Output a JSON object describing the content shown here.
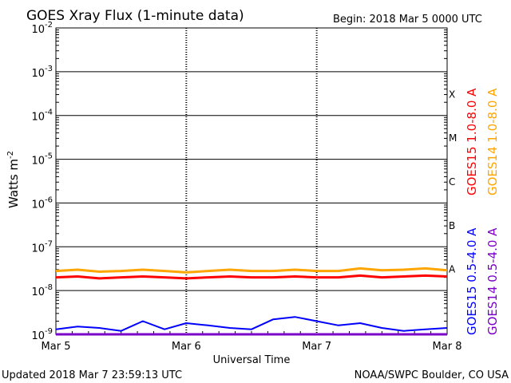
{
  "header": {
    "title": "GOES Xray Flux (1-minute data)",
    "begin": "Begin:  2018 Mar 5 0000 UTC"
  },
  "footer": {
    "updated": "Updated 2018 Mar  7 23:59:13 UTC",
    "credit": "NOAA/SWPC Boulder, CO USA"
  },
  "colors": {
    "goes15_long": "#ff0000",
    "goes14_long": "#ffa500",
    "goes15_short": "#0000ff",
    "goes14_short": "#7b00c8",
    "gridline": "#000000",
    "background": "#ffffff"
  },
  "chart_data": {
    "type": "line",
    "title": "GOES Xray Flux (1-minute data)",
    "xlabel": "Universal Time",
    "ylabel": "Watts m",
    "ylabel_superscript": "-2",
    "yscale": "log",
    "ylim": [
      1e-09,
      0.01
    ],
    "xlim": [
      "2018-03-05",
      "2018-03-08"
    ],
    "x_ticks": [
      "Mar 5",
      "Mar 6",
      "Mar 7",
      "Mar 8"
    ],
    "y_ticks": [
      {
        "base": "10",
        "exp": "-9"
      },
      {
        "base": "10",
        "exp": "-8"
      },
      {
        "base": "10",
        "exp": "-7"
      },
      {
        "base": "10",
        "exp": "-6"
      },
      {
        "base": "10",
        "exp": "-5"
      },
      {
        "base": "10",
        "exp": "-4"
      },
      {
        "base": "10",
        "exp": "-3"
      },
      {
        "base": "10",
        "exp": "-2"
      }
    ],
    "flare_classes": [
      {
        "label": "A",
        "value": 1e-08
      },
      {
        "label": "B",
        "value": 1e-07
      },
      {
        "label": "C",
        "value": 1e-06
      },
      {
        "label": "M",
        "value": 1e-05
      },
      {
        "label": "X",
        "value": 0.0001
      }
    ],
    "grid": true,
    "legend_position": "right",
    "series": [
      {
        "name": "GOES15 1.0-8.0 A",
        "color": "#ff0000",
        "x": [
          "2018-03-05 00:00",
          "2018-03-05 04:00",
          "2018-03-05 08:00",
          "2018-03-05 12:00",
          "2018-03-05 16:00",
          "2018-03-05 20:00",
          "2018-03-06 00:00",
          "2018-03-06 04:00",
          "2018-03-06 08:00",
          "2018-03-06 12:00",
          "2018-03-06 16:00",
          "2018-03-06 20:00",
          "2018-03-07 00:00",
          "2018-03-07 04:00",
          "2018-03-07 08:00",
          "2018-03-07 12:00",
          "2018-03-07 16:00",
          "2018-03-07 20:00",
          "2018-03-08 00:00"
        ],
        "values": [
          2e-08,
          2.1e-08,
          1.9e-08,
          2e-08,
          2.1e-08,
          2e-08,
          1.9e-08,
          2e-08,
          2.1e-08,
          2e-08,
          2e-08,
          2.1e-08,
          2e-08,
          2e-08,
          2.2e-08,
          2e-08,
          2.1e-08,
          2.2e-08,
          2.1e-08
        ]
      },
      {
        "name": "GOES14 1.0-8.0 A",
        "color": "#ffa500",
        "x": [
          "2018-03-05 00:00",
          "2018-03-05 04:00",
          "2018-03-05 08:00",
          "2018-03-05 12:00",
          "2018-03-05 16:00",
          "2018-03-05 20:00",
          "2018-03-06 00:00",
          "2018-03-06 04:00",
          "2018-03-06 08:00",
          "2018-03-06 12:00",
          "2018-03-06 16:00",
          "2018-03-06 20:00",
          "2018-03-07 00:00",
          "2018-03-07 04:00",
          "2018-03-07 08:00",
          "2018-03-07 12:00",
          "2018-03-07 16:00",
          "2018-03-07 20:00",
          "2018-03-08 00:00"
        ],
        "values": [
          2.8e-08,
          3e-08,
          2.7e-08,
          2.8e-08,
          3e-08,
          2.8e-08,
          2.6e-08,
          2.8e-08,
          3e-08,
          2.8e-08,
          2.8e-08,
          3e-08,
          2.8e-08,
          2.8e-08,
          3.2e-08,
          2.9e-08,
          3e-08,
          3.2e-08,
          2.9e-08
        ]
      },
      {
        "name": "GOES15 0.5-4.0 A",
        "color": "#0000ff",
        "x": [
          "2018-03-05 00:00",
          "2018-03-05 04:00",
          "2018-03-05 08:00",
          "2018-03-05 12:00",
          "2018-03-05 16:00",
          "2018-03-05 20:00",
          "2018-03-06 00:00",
          "2018-03-06 04:00",
          "2018-03-06 08:00",
          "2018-03-06 12:00",
          "2018-03-06 16:00",
          "2018-03-06 20:00",
          "2018-03-07 00:00",
          "2018-03-07 04:00",
          "2018-03-07 08:00",
          "2018-03-07 12:00",
          "2018-03-07 16:00",
          "2018-03-07 20:00",
          "2018-03-08 00:00"
        ],
        "values": [
          1.3e-09,
          1.5e-09,
          1.4e-09,
          1.2e-09,
          2e-09,
          1.3e-09,
          1.8e-09,
          1.6e-09,
          1.4e-09,
          1.3e-09,
          2.2e-09,
          2.5e-09,
          2e-09,
          1.6e-09,
          1.8e-09,
          1.4e-09,
          1.2e-09,
          1.3e-09,
          1.4e-09
        ]
      },
      {
        "name": "GOES14 0.5-4.0 A",
        "color": "#7b00c8",
        "x": [
          "2018-03-05 00:00",
          "2018-03-08 00:00"
        ],
        "values": [
          1e-09,
          1e-09
        ]
      }
    ]
  }
}
